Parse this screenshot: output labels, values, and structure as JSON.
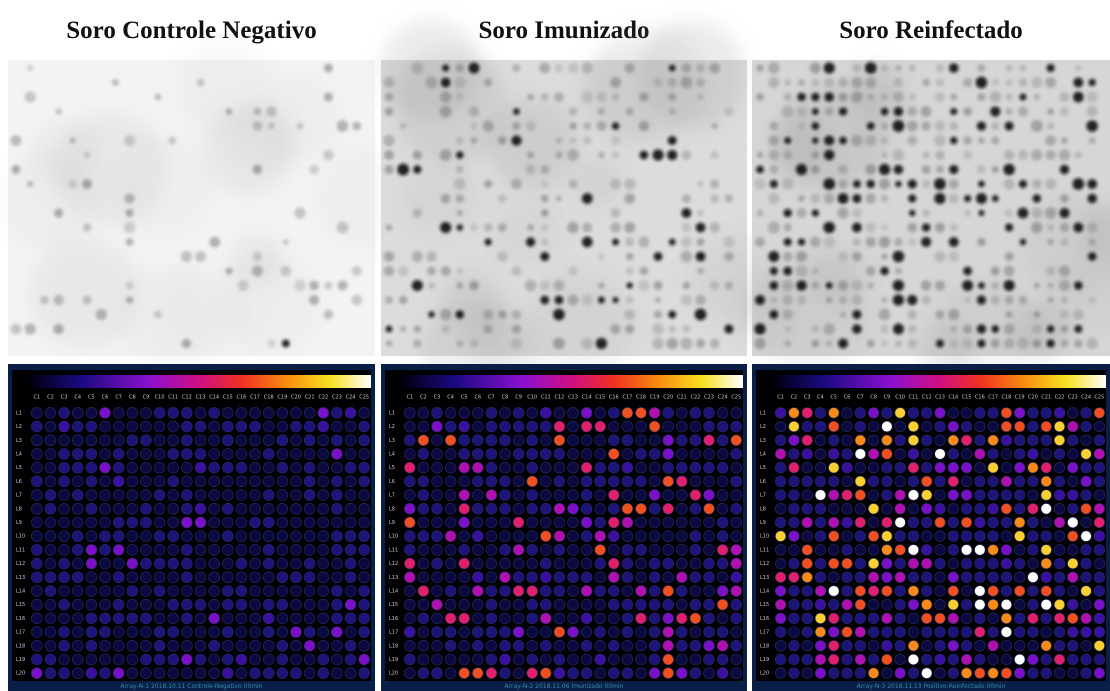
{
  "panels": [
    {
      "title": "Soro Controle Negativo",
      "caption": "Array-N-1 2018.10.11 Controle-Negativo 00min"
    },
    {
      "title": "Soro Imunizado",
      "caption": "Array-N-2 2018.11.06 Imunizado 00min"
    },
    {
      "title": "Soro Reinfectado",
      "caption": "Array-N-3 2018.11.13 Positivo-Reinfectado 00min"
    }
  ],
  "columns": [
    "C1",
    "C2",
    "C3",
    "C4",
    "C5",
    "C6",
    "C7",
    "C8",
    "C9",
    "C10",
    "C11",
    "C12",
    "C13",
    "C14",
    "C15",
    "C16",
    "C17",
    "C18",
    "C19",
    "C20",
    "C21",
    "C22",
    "C23",
    "C24",
    "C25"
  ],
  "rows": [
    "L1",
    "L2",
    "L3",
    "L4",
    "L5",
    "L6",
    "L7",
    "L8",
    "L9",
    "L10",
    "L11",
    "L12",
    "L13",
    "L14",
    "L15",
    "L16",
    "L17",
    "L18",
    "L19",
    "L20"
  ]
}
